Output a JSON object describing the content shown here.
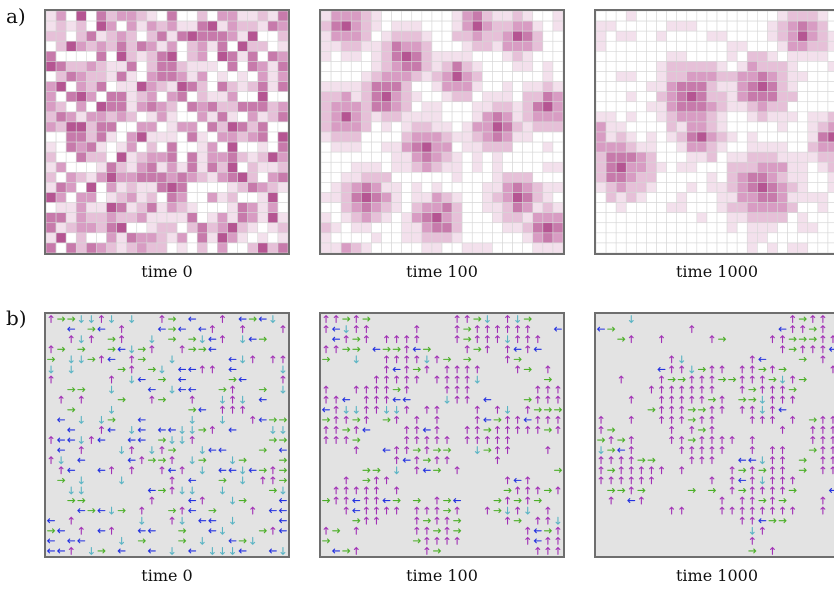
{
  "row_a": {
    "label": "a)"
  },
  "row_b": {
    "label": "b)"
  },
  "captions": [
    "time 0",
    "time 100",
    "time 1000"
  ],
  "grid_size": 24,
  "colors": {
    "density": [
      "#ffffff",
      "#f3e0ec",
      "#e6c0d8",
      "#d89cc3",
      "#c77aab",
      "#b55592"
    ],
    "grid_line": "#d6d6d6",
    "panel_border": "#6e6e6e",
    "field_background": "#e3e3e3",
    "arrow_up": "#a232b6",
    "arrow_right": "#4caf28",
    "arrow_left": "#2432e0",
    "arrow_down": "#5ab4c4"
  },
  "legend_note": ""
}
